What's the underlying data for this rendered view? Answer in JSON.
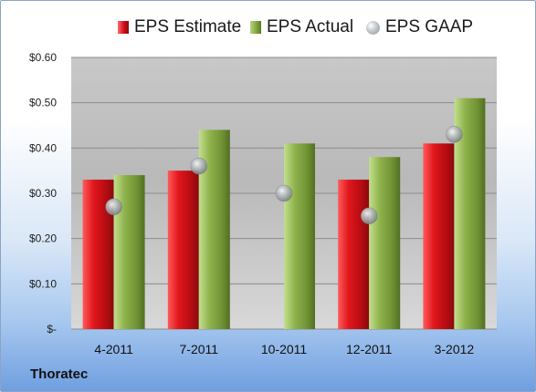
{
  "chart_data": {
    "type": "bar",
    "categories": [
      "4-2011",
      "7-2011",
      "10-2011",
      "12-2011",
      "3-2012"
    ],
    "series": [
      {
        "name": "EPS Estimate",
        "values": [
          0.33,
          0.35,
          null,
          0.33,
          0.41
        ],
        "color": "#c81218"
      },
      {
        "name": "EPS Actual",
        "values": [
          0.34,
          0.44,
          0.41,
          0.38,
          0.51
        ],
        "color": "#7fa03e"
      },
      {
        "name": "EPS GAAP",
        "values": [
          0.27,
          0.36,
          0.3,
          0.25,
          0.43
        ],
        "color": "#a9aeb3",
        "marker": "sphere"
      }
    ],
    "ylim": [
      0,
      0.6
    ],
    "yticks": [
      {
        "value": 0.6,
        "label": "$0.60"
      },
      {
        "value": 0.5,
        "label": "$0.50"
      },
      {
        "value": 0.4,
        "label": "$0.40"
      },
      {
        "value": 0.3,
        "label": "$0.30"
      },
      {
        "value": 0.2,
        "label": "$0.20"
      },
      {
        "value": 0.1,
        "label": "$0.10"
      },
      {
        "value": 0,
        "label": "$-"
      }
    ],
    "grid": true,
    "legend_position": "top",
    "footer_label": "Thoratec"
  }
}
